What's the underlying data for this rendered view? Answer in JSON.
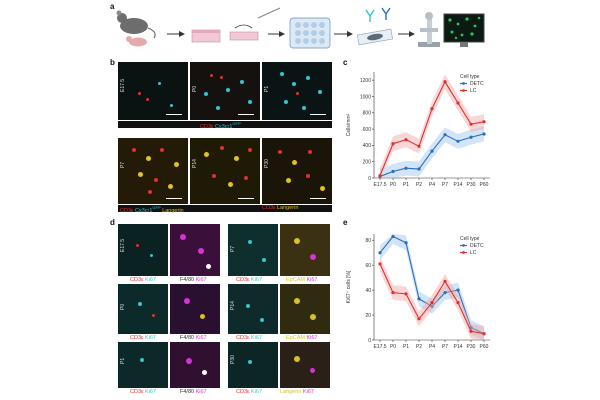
{
  "panels": {
    "a": "a",
    "b": "b",
    "c": "c",
    "d": "d",
    "e": "e"
  },
  "panel_b": {
    "top_tags": [
      "E17.5",
      "P0",
      "P1"
    ],
    "top_caption": {
      "a": "CD3ε",
      "sep": " ",
      "b": "Cx3cr1",
      "sup": "GFP"
    },
    "bottom_tags": [
      "P7",
      "P14",
      "P30"
    ],
    "bottom_caption_left": {
      "a": "CD3ε",
      "b": "Cx3cr1",
      "sup": "GFP",
      "c": "Langerin"
    },
    "bottom_caption_right": {
      "a": "CD3ε",
      "b": "Langerin"
    }
  },
  "panel_d": {
    "row_tags": [
      "E17.5",
      "P0",
      "P1"
    ],
    "right_tags": [
      "P7",
      "P14",
      "P30"
    ],
    "cap_cd3_ki67": {
      "a": "CD3ε",
      "b": "Ki67"
    },
    "cap_f480_ki67": {
      "a": "F4/80",
      "b": "Ki67"
    },
    "cap_epcam_ki67": {
      "a": "EpCAM",
      "b": "Ki67"
    },
    "cap_langerin_ki67": {
      "a": "Langerin",
      "b": "Ki67"
    }
  },
  "colors": {
    "DETC": "#2a6fbf",
    "LC": "#e0302f",
    "DETC_band": "#9cc3e8",
    "LC_band": "#f0a3a3"
  },
  "chart_data": [
    {
      "id": "c",
      "type": "line",
      "ylabel": "Cells/mm²",
      "categories": [
        "E17.5",
        "P0",
        "P1",
        "P2",
        "P4",
        "P7",
        "P14",
        "P30",
        "P60"
      ],
      "ylim": [
        0,
        1300
      ],
      "yticks": [
        0,
        200,
        400,
        600,
        800,
        1000,
        1200
      ],
      "legend_title": "Cell type",
      "series": [
        {
          "name": "DETC",
          "values": [
            20,
            80,
            120,
            110,
            330,
            530,
            450,
            500,
            540
          ]
        },
        {
          "name": "LC",
          "values": [
            30,
            420,
            470,
            390,
            850,
            1180,
            920,
            660,
            690
          ]
        }
      ]
    },
    {
      "id": "e",
      "type": "line",
      "ylabel": "Ki67⁺ cells [%]",
      "categories": [
        "E17.5",
        "P0",
        "P1",
        "P2",
        "P4",
        "P7",
        "P14",
        "P30",
        "P60"
      ],
      "ylim": [
        0,
        85
      ],
      "yticks": [
        0,
        20,
        40,
        60,
        80
      ],
      "legend_title": "Cell type",
      "series": [
        {
          "name": "DETC",
          "values": [
            70,
            83,
            78,
            33,
            27,
            38,
            40,
            10,
            5
          ]
        },
        {
          "name": "LC",
          "values": [
            61,
            38,
            37,
            17,
            30,
            47,
            30,
            7,
            5
          ]
        }
      ]
    }
  ]
}
